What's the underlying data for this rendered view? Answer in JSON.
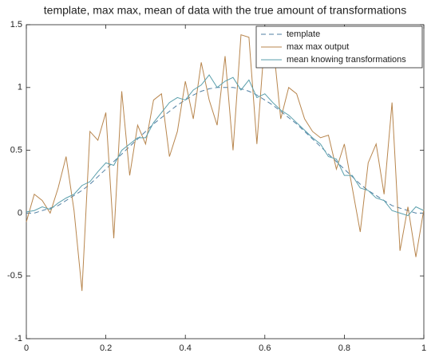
{
  "chart_data": {
    "type": "line",
    "title": "template, max max, mean of data with the true amount of transformations",
    "x": [
      0,
      0.02,
      0.04,
      0.06,
      0.08,
      0.1,
      0.12,
      0.14,
      0.16,
      0.18,
      0.2,
      0.22,
      0.24,
      0.26,
      0.28,
      0.3,
      0.32,
      0.34,
      0.36,
      0.38,
      0.4,
      0.42,
      0.44,
      0.46,
      0.48,
      0.5,
      0.52,
      0.54,
      0.56,
      0.58,
      0.6,
      0.62,
      0.64,
      0.66,
      0.68,
      0.7,
      0.72,
      0.74,
      0.76,
      0.78,
      0.8,
      0.82,
      0.84,
      0.86,
      0.88,
      0.9,
      0.92,
      0.94,
      0.96,
      0.98,
      1
    ],
    "series": [
      {
        "name": "template",
        "color": "#4f7fa3",
        "dashed": true,
        "values": [
          0,
          0,
          0.02,
          0.04,
          0.06,
          0.1,
          0.14,
          0.18,
          0.23,
          0.29,
          0.35,
          0.41,
          0.47,
          0.53,
          0.59,
          0.65,
          0.71,
          0.76,
          0.81,
          0.86,
          0.9,
          0.94,
          0.97,
          0.99,
          1.0,
          1.0,
          1.0,
          0.99,
          0.97,
          0.94,
          0.9,
          0.86,
          0.81,
          0.76,
          0.71,
          0.65,
          0.59,
          0.53,
          0.47,
          0.41,
          0.35,
          0.29,
          0.23,
          0.18,
          0.14,
          0.1,
          0.06,
          0.04,
          0.02,
          0,
          0
        ]
      },
      {
        "name": "max max output",
        "color": "#b8864e",
        "dashed": false,
        "values": [
          -0.07,
          0.15,
          0.1,
          0.0,
          0.2,
          0.45,
          0.02,
          -0.62,
          0.65,
          0.58,
          0.8,
          -0.2,
          0.97,
          0.3,
          0.7,
          0.55,
          0.9,
          0.95,
          0.45,
          0.65,
          1.05,
          0.75,
          1.2,
          0.9,
          0.7,
          1.25,
          0.5,
          1.42,
          1.4,
          0.55,
          1.4,
          1.38,
          0.75,
          1.0,
          0.95,
          0.75,
          0.65,
          0.6,
          0.62,
          0.35,
          0.55,
          0.2,
          -0.15,
          0.4,
          0.55,
          0.15,
          0.88,
          -0.3,
          0.05,
          -0.35,
          0.03
        ]
      },
      {
        "name": "mean knowing transformations",
        "color": "#5a9fac",
        "dashed": false,
        "values": [
          0.01,
          0.02,
          0.05,
          0.03,
          0.08,
          0.12,
          0.15,
          0.22,
          0.25,
          0.33,
          0.4,
          0.38,
          0.5,
          0.55,
          0.6,
          0.6,
          0.72,
          0.8,
          0.88,
          0.92,
          0.9,
          0.98,
          1.02,
          1.1,
          1.0,
          1.05,
          1.08,
          0.98,
          1.06,
          0.92,
          0.95,
          0.88,
          0.82,
          0.78,
          0.72,
          0.66,
          0.6,
          0.55,
          0.45,
          0.43,
          0.3,
          0.3,
          0.2,
          0.18,
          0.12,
          0.1,
          0.02,
          0.0,
          -0.02,
          0.05,
          0.02
        ]
      }
    ],
    "xlim": [
      0,
      1
    ],
    "xticks": [
      0,
      0.2,
      0.4,
      0.6,
      0.8,
      1
    ],
    "ylim": [
      -1,
      1.5
    ],
    "yticks": [
      -1,
      -0.5,
      0,
      0.5,
      1,
      1.5
    ],
    "grid": false,
    "legend": "northeast"
  }
}
